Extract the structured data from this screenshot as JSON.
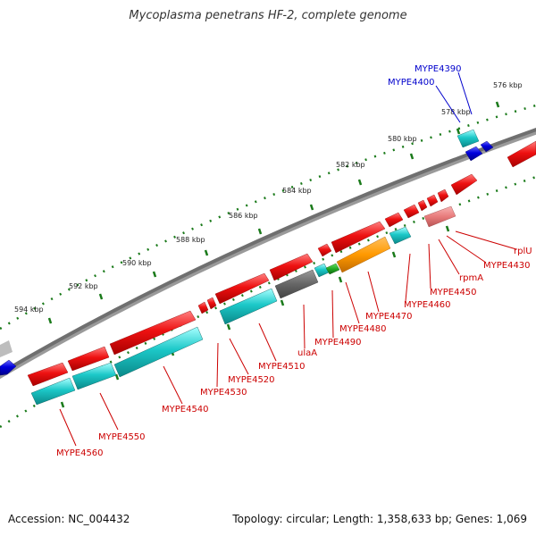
{
  "title": "Mycoplasma penetrans HF-2, complete genome",
  "footer": {
    "accession": "Accession: NC_004432",
    "summary": "Topology: circular; Length: 1,358,633 bp; Genes: 1,069"
  },
  "scale_labels": [
    "576 kbp",
    "578 kbp",
    "580 kbp",
    "582 kbp",
    "584 kbp",
    "586 kbp",
    "588 kbp",
    "590 kbp",
    "592 kbp",
    "594 kbp"
  ],
  "gene_labels": [
    {
      "text": "MYPE4390",
      "color": "#0000cc"
    },
    {
      "text": "MYPE4400",
      "color": "#0000cc"
    },
    {
      "text": "rplU",
      "color": "#cc0000"
    },
    {
      "text": "MYPE4430",
      "color": "#cc0000"
    },
    {
      "text": "rpmA",
      "color": "#cc0000"
    },
    {
      "text": "MYPE4450",
      "color": "#cc0000"
    },
    {
      "text": "MYPE4460",
      "color": "#cc0000"
    },
    {
      "text": "MYPE4470",
      "color": "#cc0000"
    },
    {
      "text": "MYPE4480",
      "color": "#cc0000"
    },
    {
      "text": "MYPE4490",
      "color": "#cc0000"
    },
    {
      "text": "ulaA",
      "color": "#cc0000"
    },
    {
      "text": "MYPE4510",
      "color": "#cc0000"
    },
    {
      "text": "MYPE4520",
      "color": "#cc0000"
    },
    {
      "text": "MYPE4530",
      "color": "#cc0000"
    },
    {
      "text": "MYPE4540",
      "color": "#cc0000"
    },
    {
      "text": "MYPE4550",
      "color": "#cc0000"
    },
    {
      "text": "MYPE4560",
      "color": "#cc0000"
    }
  ],
  "colors": {
    "backbone": "#7a7a7a",
    "scale_ticks": "#1a7a1a",
    "forward_cds": "#ee1111",
    "reverse_cds": "#0000dd",
    "rna_cyan": "#19c6c6",
    "gray_feature": "#666666",
    "orange_feature": "#ff9900",
    "green_feature": "#22aa22",
    "pink_feature": "#e87b7b"
  }
}
